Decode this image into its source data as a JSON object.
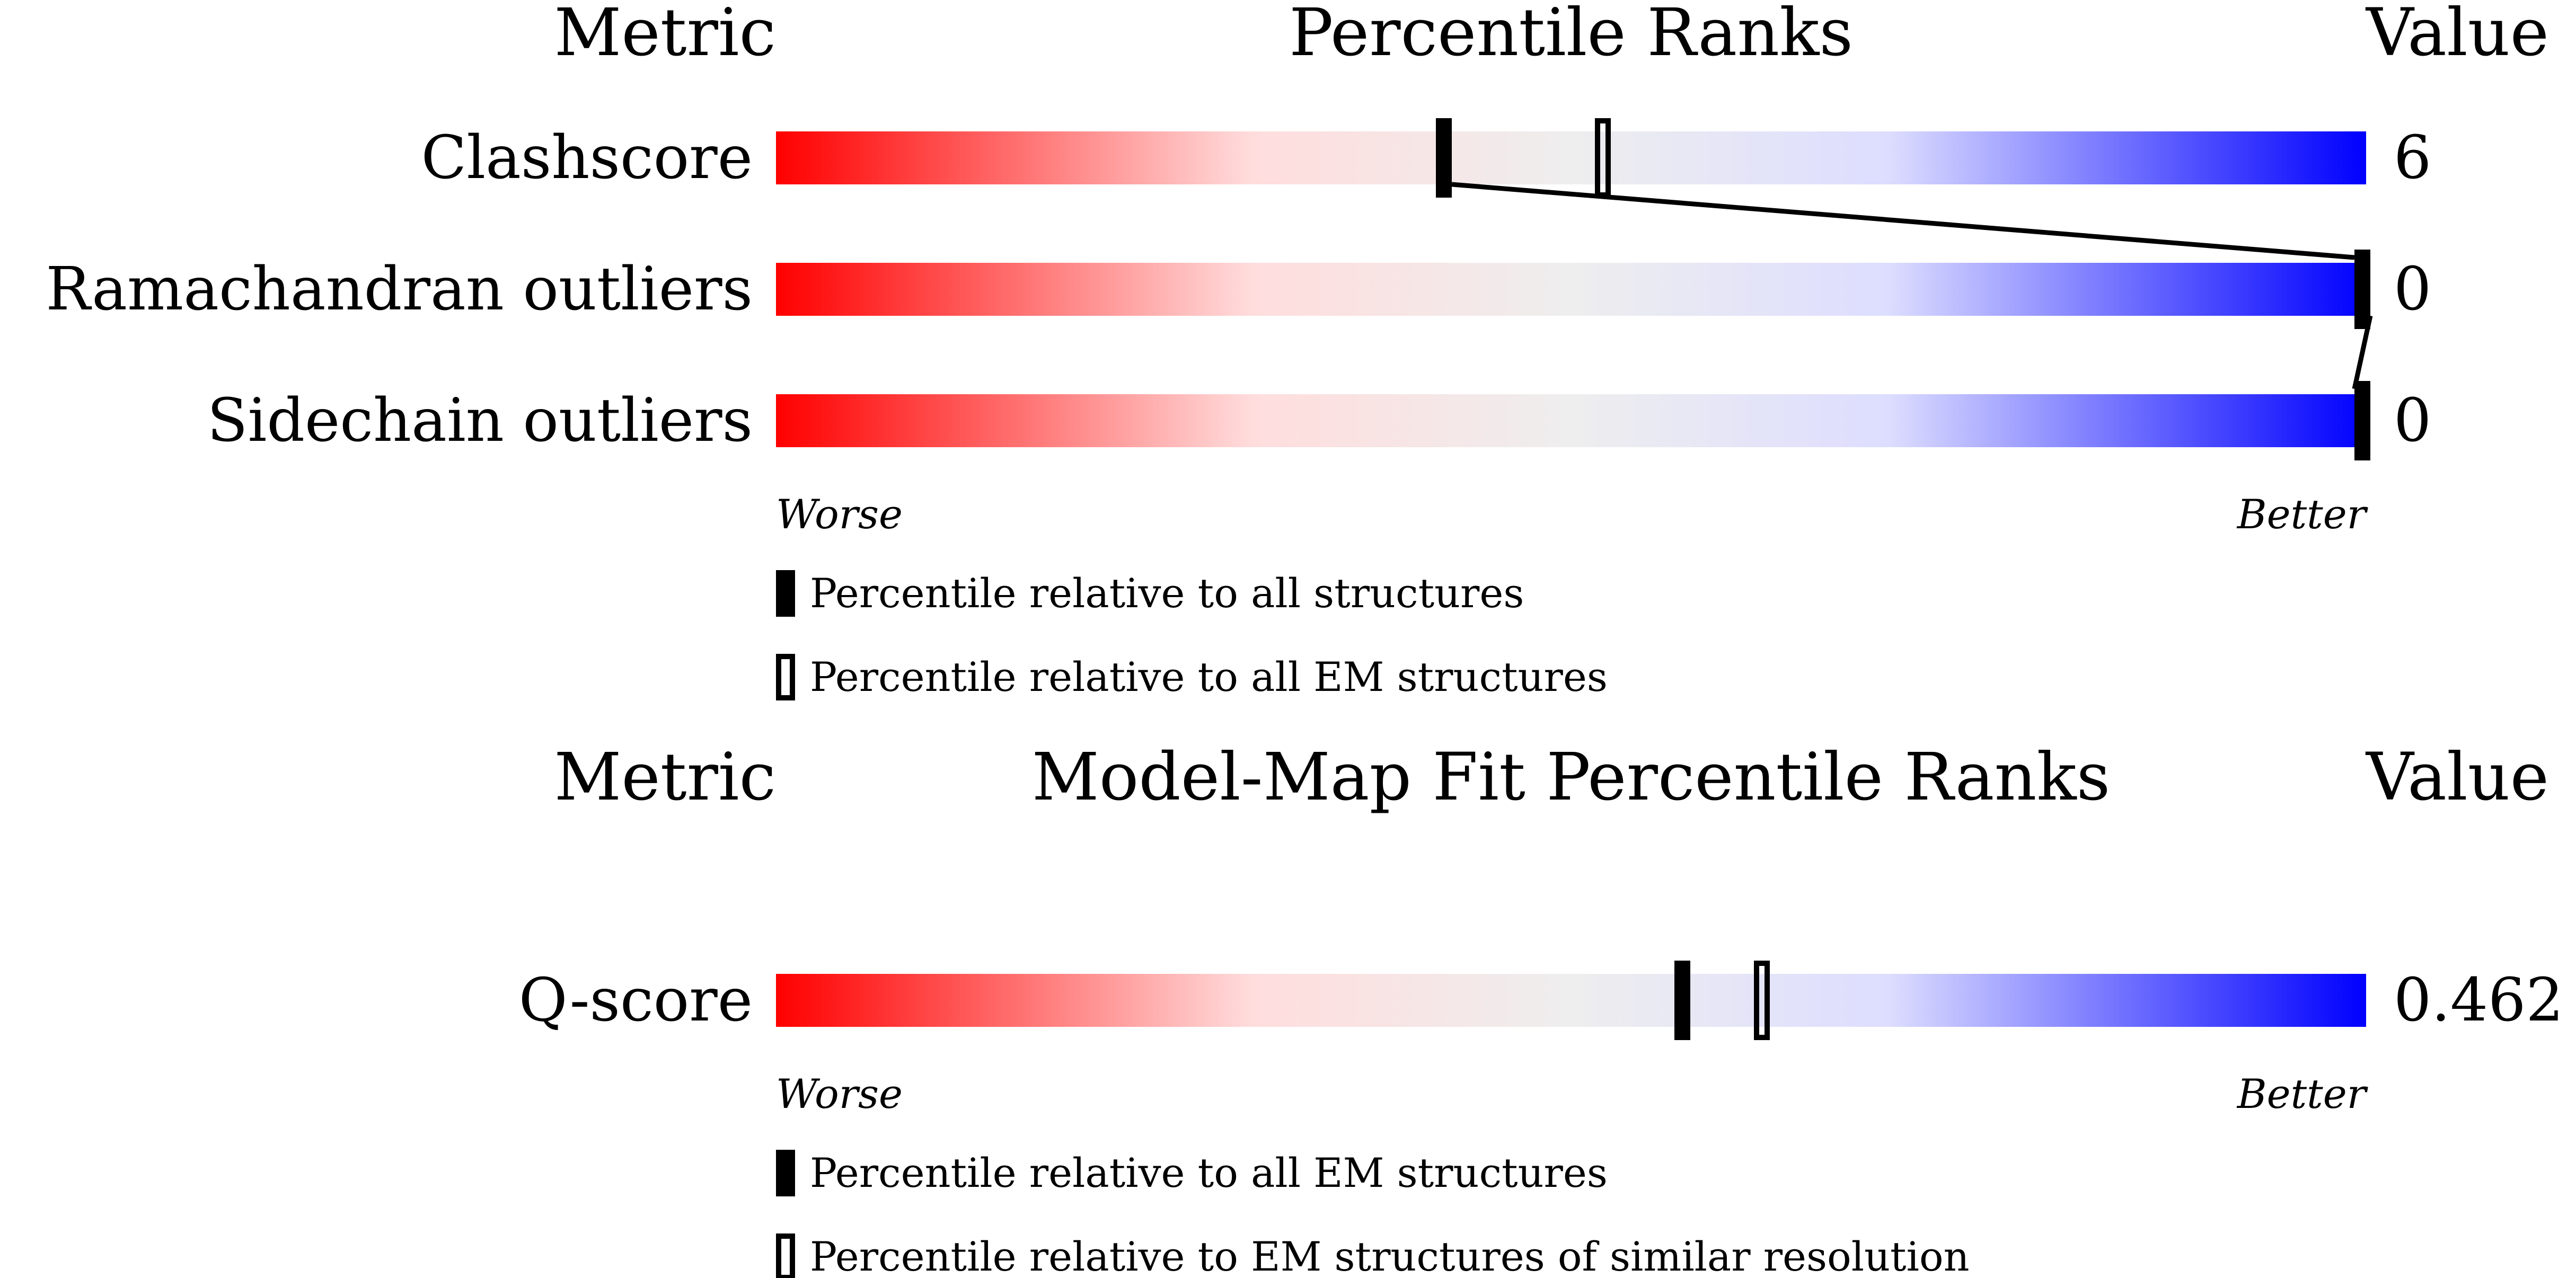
{
  "chart_data": [
    {
      "type": "bar",
      "title": "Percentile Ranks",
      "header_left": "Metric",
      "header_right": "Value",
      "xlim": [
        0,
        100
      ],
      "worse_label": "Worse",
      "better_label": "Better",
      "gradient_colors": [
        "#ff0000",
        "#ffdddd",
        "#eeeeee",
        "#ddddff",
        "#0000ff"
      ],
      "metrics": [
        {
          "name": "Clashscore",
          "value": "6",
          "percentile_all": 42,
          "percentile_em": 52
        },
        {
          "name": "Ramachandran outliers",
          "value": "0",
          "percentile_all": 100,
          "percentile_em": 100
        },
        {
          "name": "Sidechain outliers",
          "value": "0",
          "percentile_all": 100,
          "percentile_em": 100
        }
      ],
      "legend": [
        {
          "marker": "filled",
          "label": "Percentile relative to all structures"
        },
        {
          "marker": "open",
          "label": "Percentile relative to all EM structures"
        }
      ]
    },
    {
      "type": "bar",
      "title": "Model-Map Fit Percentile Ranks",
      "header_left": "Metric",
      "header_right": "Value",
      "xlim": [
        0,
        100
      ],
      "worse_label": "Worse",
      "better_label": "Better",
      "gradient_colors": [
        "#ff0000",
        "#ffdddd",
        "#eeeeee",
        "#ddddff",
        "#0000ff"
      ],
      "metrics": [
        {
          "name": "Q-score",
          "value": "0.462",
          "percentile_all": 57,
          "percentile_em": 62
        }
      ],
      "legend": [
        {
          "marker": "filled",
          "label": "Percentile relative to all EM structures"
        },
        {
          "marker": "open",
          "label": "Percentile relative to EM structures of similar resolution"
        }
      ]
    }
  ]
}
